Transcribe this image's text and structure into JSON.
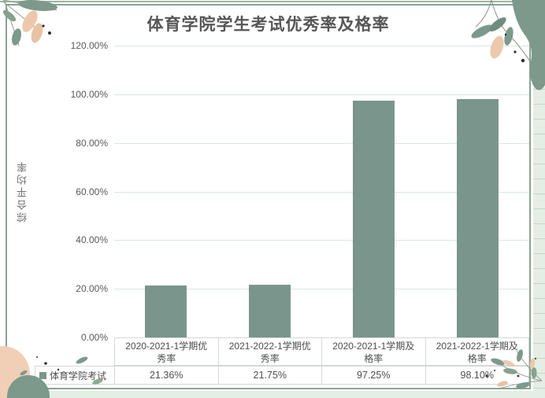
{
  "chart": {
    "title": "体育学院学生考试优秀率及格率",
    "y_axis_title": "综合平均率",
    "series_label": "体育学院考试",
    "y_ticks": [
      "120.00%",
      "100.00%",
      "80.00%",
      "60.00%",
      "40.00%",
      "20.00%",
      "0.00%"
    ],
    "colors": {
      "bar": "#7a968c",
      "gridline": "#d8e8da",
      "card_border": "#8aa492",
      "sheet_background": "#e5eee4",
      "leaf_green": "#7d998c",
      "leaf_peach": "#ecc9ad",
      "text": "#595959"
    }
  },
  "chart_data": {
    "type": "bar",
    "title": "体育学院学生考试优秀率及格率",
    "xlabel": "",
    "ylabel": "综合平均率",
    "categories": [
      "2020-2021-1学期优秀率",
      "2021-2022-1学期优秀率",
      "2020-2021-1学期及格率",
      "2021-2022-1学期及格率"
    ],
    "categories_display": [
      "2020-2021-1学期优\n秀率",
      "2021-2022-1学期优\n秀率",
      "2020-2021-1学期及\n格率",
      "2021-2022-1学期及\n格率"
    ],
    "series": [
      {
        "name": "体育学院考试",
        "values": [
          21.36,
          21.75,
          97.25,
          98.1
        ]
      }
    ],
    "values_display": [
      "21.36%",
      "21.75%",
      "97.25%",
      "98.10%"
    ],
    "ylim": [
      0,
      120
    ],
    "y_tick_step": 20,
    "grid": true,
    "legend_position": "data-table-left"
  }
}
